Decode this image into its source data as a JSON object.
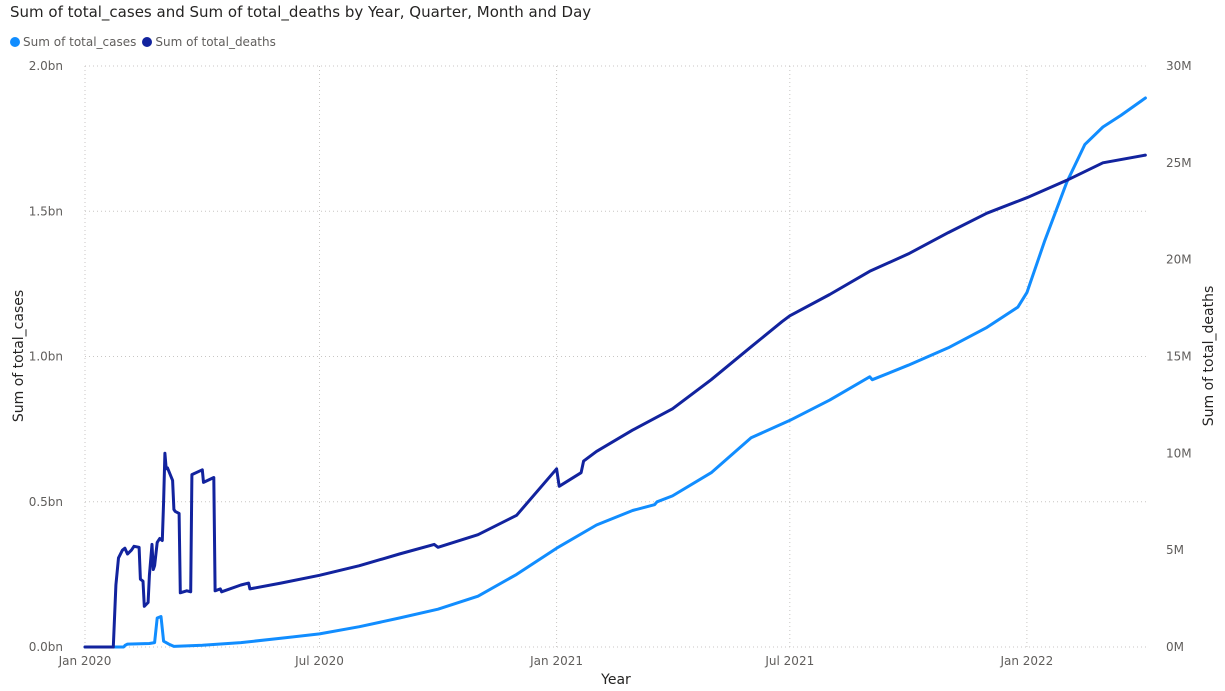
{
  "chart_data": {
    "type": "line",
    "title": "Sum of total_cases and Sum of total_deaths by Year, Quarter, Month and Day",
    "xlabel": "Year",
    "ylabel": "Sum of total_cases",
    "y2label": "Sum of total_deaths",
    "x_ticks": [
      "Jan 2020",
      "Jul 2020",
      "Jan 2021",
      "Jul 2021",
      "Jan 2022"
    ],
    "x_tick_dates": [
      "2020-01-01",
      "2020-07-01",
      "2021-01-01",
      "2021-07-01",
      "2022-01-01"
    ],
    "y_ticks": [
      "0.0bn",
      "0.5bn",
      "1.0bn",
      "1.5bn",
      "2.0bn"
    ],
    "y_tick_values": [
      0,
      0.5,
      1.0,
      1.5,
      2.0
    ],
    "y2_ticks": [
      "0M",
      "5M",
      "10M",
      "15M",
      "20M",
      "25M",
      "30M"
    ],
    "y2_tick_values": [
      0,
      5,
      10,
      15,
      20,
      25,
      30
    ],
    "ylim": [
      0,
      2.0
    ],
    "y2lim": [
      0,
      30
    ],
    "x_range": [
      "2020-01-01",
      "2022-04-05"
    ],
    "grid": true,
    "legend_position": "top-left",
    "series": [
      {
        "name": "Sum of total_cases",
        "axis": "left",
        "unit": "bn",
        "color": "#118DFF",
        "points": [
          [
            "2020-01-01",
            0
          ],
          [
            "2020-01-31",
            0
          ],
          [
            "2020-02-01",
            0.005
          ],
          [
            "2020-02-03",
            0.01
          ],
          [
            "2020-02-20",
            0.012
          ],
          [
            "2020-02-24",
            0.015
          ],
          [
            "2020-02-26",
            0.1
          ],
          [
            "2020-02-29",
            0.105
          ],
          [
            "2020-03-02",
            0.02
          ],
          [
            "2020-03-06",
            0.01
          ],
          [
            "2020-03-10",
            0.002
          ],
          [
            "2020-04-01",
            0.006
          ],
          [
            "2020-05-01",
            0.015
          ],
          [
            "2020-06-01",
            0.03
          ],
          [
            "2020-07-01",
            0.045
          ],
          [
            "2020-08-01",
            0.07
          ],
          [
            "2020-09-01",
            0.1
          ],
          [
            "2020-10-01",
            0.13
          ],
          [
            "2020-11-01",
            0.175
          ],
          [
            "2020-12-01",
            0.25
          ],
          [
            "2021-01-01",
            0.34
          ],
          [
            "2021-02-01",
            0.42
          ],
          [
            "2021-03-01",
            0.47
          ],
          [
            "2021-03-18",
            0.49
          ],
          [
            "2021-03-20",
            0.5
          ],
          [
            "2021-04-01",
            0.52
          ],
          [
            "2021-05-01",
            0.6
          ],
          [
            "2021-06-01",
            0.72
          ],
          [
            "2021-07-01",
            0.78
          ],
          [
            "2021-08-01",
            0.85
          ],
          [
            "2021-09-01",
            0.93
          ],
          [
            "2021-09-03",
            0.92
          ],
          [
            "2021-10-01",
            0.97
          ],
          [
            "2021-11-01",
            1.03
          ],
          [
            "2021-12-01",
            1.1
          ],
          [
            "2021-12-25",
            1.17
          ],
          [
            "2022-01-01",
            1.22
          ],
          [
            "2022-01-15",
            1.4
          ],
          [
            "2022-02-01",
            1.6
          ],
          [
            "2022-02-15",
            1.73
          ],
          [
            "2022-03-01",
            1.79
          ],
          [
            "2022-03-15",
            1.83
          ],
          [
            "2022-04-03",
            1.89
          ]
        ]
      },
      {
        "name": "Sum of total_deaths",
        "axis": "right",
        "unit": "M",
        "color": "#12239E",
        "points": [
          [
            "2020-01-01",
            0
          ],
          [
            "2020-01-23",
            0
          ],
          [
            "2020-01-25",
            3.2
          ],
          [
            "2020-01-27",
            4.6
          ],
          [
            "2020-01-30",
            5.0
          ],
          [
            "2020-02-01",
            5.1
          ],
          [
            "2020-02-03",
            4.8
          ],
          [
            "2020-02-06",
            5.0
          ],
          [
            "2020-02-08",
            5.2
          ],
          [
            "2020-02-12",
            5.15
          ],
          [
            "2020-02-13",
            3.5
          ],
          [
            "2020-02-15",
            3.4
          ],
          [
            "2020-02-16",
            2.1
          ],
          [
            "2020-02-19",
            2.3
          ],
          [
            "2020-02-20",
            3.7
          ],
          [
            "2020-02-22",
            5.3
          ],
          [
            "2020-02-23",
            4.0
          ],
          [
            "2020-02-24",
            4.2
          ],
          [
            "2020-02-26",
            5.4
          ],
          [
            "2020-02-28",
            5.6
          ],
          [
            "2020-03-01",
            5.5
          ],
          [
            "2020-03-02",
            7.5
          ],
          [
            "2020-03-03",
            10.0
          ],
          [
            "2020-03-04",
            9.2
          ],
          [
            "2020-03-05",
            9.25
          ],
          [
            "2020-03-09",
            8.6
          ],
          [
            "2020-03-10",
            7.1
          ],
          [
            "2020-03-11",
            7.0
          ],
          [
            "2020-03-14",
            6.9
          ],
          [
            "2020-03-15",
            2.8
          ],
          [
            "2020-03-20",
            2.9
          ],
          [
            "2020-03-23",
            2.85
          ],
          [
            "2020-03-24",
            8.9
          ],
          [
            "2020-04-01",
            9.15
          ],
          [
            "2020-04-02",
            8.5
          ],
          [
            "2020-04-10",
            8.75
          ],
          [
            "2020-04-11",
            2.9
          ],
          [
            "2020-04-15",
            3.0
          ],
          [
            "2020-04-16",
            2.85
          ],
          [
            "2020-05-01",
            3.2
          ],
          [
            "2020-05-07",
            3.3
          ],
          [
            "2020-05-08",
            3.0
          ],
          [
            "2020-06-01",
            3.3
          ],
          [
            "2020-07-01",
            3.7
          ],
          [
            "2020-08-01",
            4.2
          ],
          [
            "2020-09-01",
            4.8
          ],
          [
            "2020-09-28",
            5.3
          ],
          [
            "2020-10-01",
            5.15
          ],
          [
            "2020-11-01",
            5.8
          ],
          [
            "2020-12-01",
            6.8
          ],
          [
            "2021-01-01",
            9.2
          ],
          [
            "2021-01-03",
            8.3
          ],
          [
            "2021-01-20",
            9.0
          ],
          [
            "2021-01-22",
            9.6
          ],
          [
            "2021-02-01",
            10.1
          ],
          [
            "2021-03-01",
            11.2
          ],
          [
            "2021-04-01",
            12.3
          ],
          [
            "2021-05-01",
            13.8
          ],
          [
            "2021-06-01",
            15.5
          ],
          [
            "2021-06-25",
            16.8
          ],
          [
            "2021-07-01",
            17.1
          ],
          [
            "2021-08-01",
            18.2
          ],
          [
            "2021-09-01",
            19.4
          ],
          [
            "2021-10-01",
            20.3
          ],
          [
            "2021-11-01",
            21.4
          ],
          [
            "2021-12-01",
            22.4
          ],
          [
            "2022-01-01",
            23.2
          ],
          [
            "2022-02-01",
            24.1
          ],
          [
            "2022-03-01",
            25.0
          ],
          [
            "2022-04-03",
            25.4
          ]
        ]
      }
    ]
  }
}
